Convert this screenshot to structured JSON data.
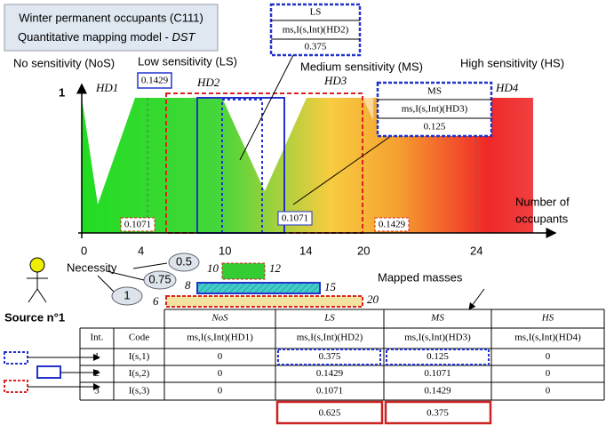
{
  "header": {
    "title_line1": "Winter permanent occupants (C111)",
    "title_line2": "Quantitative mapping model - ",
    "title_em": "DST"
  },
  "sensitivity_labels": [
    "No sensitivity (NoS)",
    "Low sensitivity (LS)",
    "Medium sensitivity (MS)",
    "High sensitivity (HS)"
  ],
  "hd_labels": [
    "HD1",
    "HD2",
    "HD3",
    "HD4"
  ],
  "y_label": "1",
  "x_ticks": [
    "0",
    "4",
    "10",
    "14",
    "20",
    "24"
  ],
  "x_axis_label": [
    "Number of",
    "occupants"
  ],
  "callouts": [
    {
      "title": "LS",
      "formula": "ms,I(s,Int)(HD2)",
      "value": "0.375"
    },
    {
      "title": "MS",
      "formula": "ms,I(s,Int)(HD3)",
      "value": "0.125"
    }
  ],
  "graph_values": [
    "0.1429",
    "0.1071",
    "0.1071",
    "0.1429"
  ],
  "necessity": {
    "label": "Necessity",
    "levels": [
      "0.5",
      "0.75",
      "1"
    ]
  },
  "intervals": [
    [
      "10",
      "12"
    ],
    [
      "8",
      "15"
    ],
    [
      "6",
      "20"
    ]
  ],
  "mapped_masses": "Mapped masses",
  "source": "Source n°1",
  "table": {
    "header": [
      "NoS",
      "LS",
      "MS",
      "HS"
    ],
    "subheader": [
      "Int.",
      "Code",
      "ms,I(s,Int)(HD1)",
      "ms,I(s,Int)(HD2)",
      "ms,I(s,Int)(HD3)",
      "ms,I(s,Int)(HD4)"
    ],
    "rows": [
      [
        "1",
        "I(s,1)",
        "0",
        "0.375",
        "0.125",
        "0"
      ],
      [
        "2",
        "I(s,2)",
        "0",
        "0.1429",
        "0.1071",
        "0"
      ],
      [
        "3",
        "I(s,3)",
        "0",
        "0.1071",
        "0.1429",
        "0"
      ]
    ],
    "totals": [
      "0.625",
      "0.375"
    ]
  }
}
